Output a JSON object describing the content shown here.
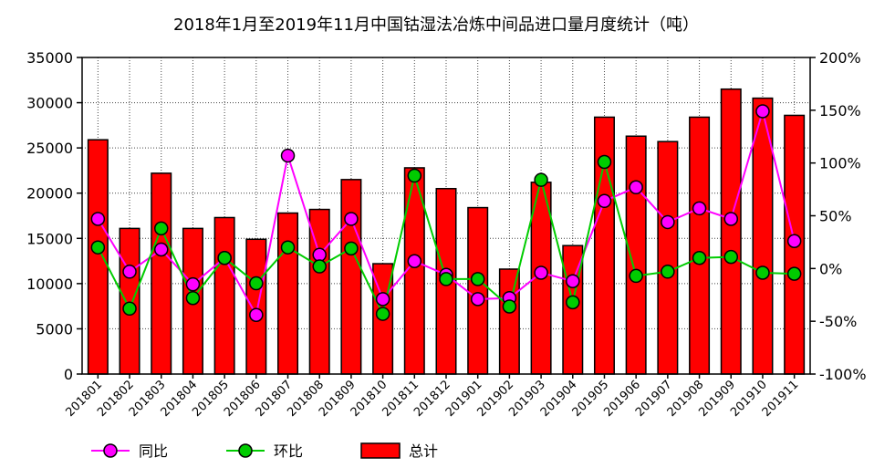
{
  "chart_data": {
    "type": "bar+line",
    "title": "2018年1月至2019年11月中国钴湿法冶炼中间品进口量月度统计（吨）",
    "categories": [
      "201801",
      "201802",
      "201803",
      "201804",
      "201805",
      "201806",
      "201807",
      "201808",
      "201809",
      "201810",
      "201811",
      "201812",
      "201901",
      "201902",
      "201903",
      "201904",
      "201905",
      "201906",
      "201907",
      "201908",
      "201909",
      "201910",
      "201911"
    ],
    "y_left": {
      "min": 0,
      "max": 35000,
      "ticks": [
        "0",
        "5000",
        "10000",
        "15000",
        "20000",
        "25000",
        "30000",
        "35000"
      ]
    },
    "y_right": {
      "min": -100,
      "max": 200,
      "ticks": [
        "-100%",
        "-50%",
        "0%",
        "50%",
        "100%",
        "150%",
        "200%"
      ]
    },
    "grid": true,
    "legend_position": "bottom-left",
    "series": [
      {
        "name": "同比",
        "kind": "line",
        "axis": "right",
        "color": "#ff00ff",
        "values": [
          47,
          -3,
          18,
          -15,
          10,
          -44,
          107,
          13,
          47,
          -29,
          7,
          -6,
          -29,
          -28,
          -4,
          -12,
          64,
          77,
          44,
          57,
          47,
          149,
          26
        ]
      },
      {
        "name": "环比",
        "kind": "line",
        "axis": "right",
        "color": "#00cc00",
        "values": [
          20,
          -38,
          38,
          -28,
          10,
          -14,
          20,
          2,
          19,
          -43,
          88,
          -10,
          -10,
          -36,
          84,
          -32,
          101,
          -7,
          -3,
          10,
          11,
          -4,
          -5
        ]
      },
      {
        "name": "总计",
        "kind": "bar",
        "axis": "left",
        "color": "#ff0000",
        "values": [
          25900,
          16100,
          22200,
          16100,
          17300,
          14900,
          17800,
          18200,
          21500,
          12200,
          22800,
          20500,
          18400,
          11600,
          21200,
          14200,
          28400,
          26300,
          25700,
          28400,
          31500,
          30500,
          28600
        ]
      }
    ]
  }
}
